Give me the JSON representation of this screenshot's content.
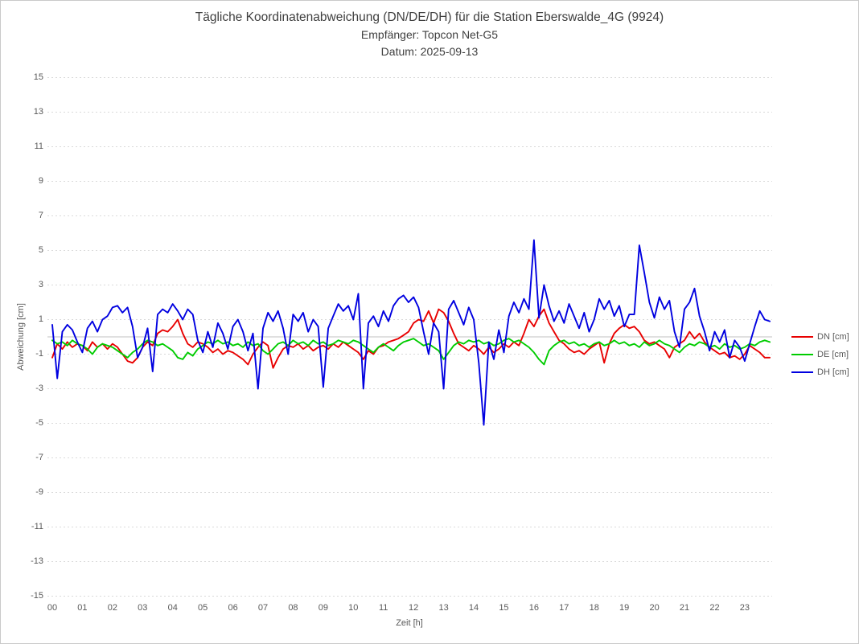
{
  "colors": {
    "dn_red": "#e80000",
    "de_green": "#00cc00",
    "dh_blue": "#0000e0",
    "title_text": "#3f3f3f",
    "tick_text": "#595959",
    "gridline": "#d9d9d9",
    "zero_line": "#c0c0c0"
  },
  "chart_data": {
    "type": "line",
    "title": "Tägliche Koordinatenabweichung (DN/DE/DH) für die Station Eberswalde_4G (9924)",
    "subtitle": "Empfänger: Topcon Net-G5",
    "date_line": "Datum: 2025-09-13",
    "xlabel": "Zeit [h]",
    "ylabel": "Abweichung [cm]",
    "xlim": [
      0,
      24
    ],
    "ylim": [
      -15,
      15
    ],
    "grid": "horizontal-dotted",
    "zero_line": true,
    "legend_position": "right",
    "yticks": [
      15,
      13,
      11,
      9,
      7,
      5,
      3,
      1,
      -1,
      -3,
      -5,
      -7,
      -9,
      -11,
      -13,
      -15
    ],
    "xticks": [
      "00",
      "01",
      "02",
      "03",
      "04",
      "05",
      "06",
      "07",
      "08",
      "09",
      "10",
      "11",
      "12",
      "13",
      "14",
      "15",
      "16",
      "17",
      "18",
      "19",
      "20",
      "21",
      "22",
      "23"
    ],
    "x_start_hour": 0,
    "x_step_minutes": 10,
    "series": [
      {
        "name": "DN [cm]",
        "color": "#e80000",
        "values": [
          -1.2,
          -0.4,
          -0.7,
          -0.3,
          -0.6,
          -0.4,
          -0.5,
          -0.8,
          -0.3,
          -0.6,
          -0.4,
          -0.7,
          -0.4,
          -0.6,
          -1.0,
          -1.4,
          -1.5,
          -1.2,
          -0.6,
          -0.3,
          -0.5,
          0.2,
          0.4,
          0.3,
          0.6,
          1.0,
          0.2,
          -0.4,
          -0.6,
          -0.3,
          -0.4,
          -0.6,
          -0.9,
          -0.7,
          -1.0,
          -0.8,
          -0.9,
          -1.1,
          -1.3,
          -1.6,
          -1.0,
          -0.6,
          -0.3,
          -0.5,
          -1.8,
          -1.2,
          -0.7,
          -0.5,
          -0.6,
          -0.4,
          -0.7,
          -0.5,
          -0.8,
          -0.6,
          -0.5,
          -0.7,
          -0.4,
          -0.6,
          -0.3,
          -0.5,
          -0.7,
          -0.9,
          -1.3,
          -0.8,
          -1.0,
          -0.6,
          -0.5,
          -0.3,
          -0.2,
          -0.1,
          0.1,
          0.3,
          0.8,
          1.0,
          0.9,
          1.5,
          0.8,
          1.6,
          1.4,
          0.9,
          0.2,
          -0.4,
          -0.6,
          -0.8,
          -0.5,
          -0.7,
          -1.0,
          -0.6,
          -0.9,
          -0.7,
          -0.4,
          -0.6,
          -0.3,
          -0.5,
          0.2,
          1.0,
          0.6,
          1.2,
          1.6,
          0.8,
          0.3,
          -0.2,
          -0.4,
          -0.7,
          -0.9,
          -0.8,
          -1.0,
          -0.7,
          -0.5,
          -0.3,
          -1.5,
          -0.4,
          0.2,
          0.5,
          0.7,
          0.5,
          0.6,
          0.3,
          -0.2,
          -0.4,
          -0.3,
          -0.5,
          -0.7,
          -1.2,
          -0.6,
          -0.4,
          -0.2,
          0.3,
          -0.1,
          0.2,
          -0.3,
          -0.6,
          -0.8,
          -1.0,
          -0.9,
          -1.2,
          -1.1,
          -1.3,
          -1.0,
          -0.5,
          -0.7,
          -0.9,
          -1.2,
          -1.2
        ]
      },
      {
        "name": "DE [cm]",
        "color": "#00cc00",
        "values": [
          -0.2,
          -0.4,
          -0.3,
          -0.5,
          -0.2,
          -0.4,
          -0.5,
          -0.7,
          -1.0,
          -0.6,
          -0.4,
          -0.5,
          -0.6,
          -0.8,
          -1.0,
          -1.2,
          -0.9,
          -0.7,
          -0.4,
          -0.2,
          -0.3,
          -0.5,
          -0.4,
          -0.6,
          -0.8,
          -1.2,
          -1.3,
          -0.9,
          -1.1,
          -0.7,
          -0.5,
          -0.3,
          -0.4,
          -0.2,
          -0.4,
          -0.3,
          -0.5,
          -0.4,
          -0.6,
          -0.3,
          -0.5,
          -0.4,
          -0.8,
          -1.0,
          -0.7,
          -0.4,
          -0.3,
          -0.5,
          -0.2,
          -0.4,
          -0.3,
          -0.5,
          -0.2,
          -0.4,
          -0.3,
          -0.5,
          -0.4,
          -0.2,
          -0.3,
          -0.4,
          -0.2,
          -0.3,
          -0.5,
          -0.7,
          -0.9,
          -0.6,
          -0.4,
          -0.6,
          -0.8,
          -0.5,
          -0.3,
          -0.2,
          -0.1,
          -0.3,
          -0.5,
          -0.4,
          -0.6,
          -0.8,
          -1.3,
          -0.9,
          -0.5,
          -0.3,
          -0.4,
          -0.2,
          -0.3,
          -0.2,
          -0.4,
          -0.3,
          -0.5,
          -0.4,
          -0.2,
          -0.1,
          -0.3,
          -0.2,
          -0.4,
          -0.6,
          -0.9,
          -1.3,
          -1.6,
          -0.8,
          -0.5,
          -0.3,
          -0.2,
          -0.4,
          -0.3,
          -0.5,
          -0.4,
          -0.6,
          -0.4,
          -0.3,
          -0.5,
          -0.4,
          -0.2,
          -0.4,
          -0.3,
          -0.5,
          -0.4,
          -0.6,
          -0.3,
          -0.5,
          -0.4,
          -0.2,
          -0.4,
          -0.5,
          -0.7,
          -0.9,
          -0.6,
          -0.4,
          -0.5,
          -0.3,
          -0.4,
          -0.6,
          -0.5,
          -0.7,
          -0.4,
          -0.6,
          -0.5,
          -0.7,
          -0.6,
          -0.4,
          -0.5,
          -0.3,
          -0.2,
          -0.3
        ]
      },
      {
        "name": "DH [cm]",
        "color": "#0000e0",
        "values": [
          0.7,
          -2.4,
          0.3,
          0.7,
          0.4,
          -0.3,
          -0.9,
          0.5,
          0.9,
          0.3,
          1.0,
          1.2,
          1.7,
          1.8,
          1.4,
          1.7,
          0.6,
          -1.2,
          -0.6,
          0.5,
          -2.0,
          1.3,
          1.6,
          1.4,
          1.9,
          1.5,
          1.0,
          1.6,
          1.3,
          -0.2,
          -0.9,
          0.3,
          -0.6,
          0.8,
          0.2,
          -0.7,
          0.6,
          1.0,
          0.3,
          -0.8,
          0.2,
          -3.0,
          0.5,
          1.4,
          0.9,
          1.5,
          0.5,
          -1.0,
          1.3,
          0.9,
          1.4,
          0.3,
          1.0,
          0.6,
          -2.9,
          0.5,
          1.2,
          1.9,
          1.5,
          1.8,
          1.0,
          2.5,
          -3.0,
          0.8,
          1.2,
          0.6,
          1.5,
          0.9,
          1.8,
          2.2,
          2.4,
          2.0,
          2.3,
          1.7,
          0.3,
          -1.0,
          0.8,
          0.3,
          -3.0,
          1.6,
          2.1,
          1.4,
          0.7,
          1.7,
          1.0,
          -1.5,
          -5.1,
          -0.3,
          -1.3,
          0.4,
          -0.9,
          1.2,
          2.0,
          1.4,
          2.2,
          1.6,
          5.6,
          1.1,
          3.0,
          1.8,
          0.9,
          1.5,
          0.8,
          1.9,
          1.2,
          0.5,
          1.4,
          0.3,
          1.0,
          2.2,
          1.6,
          2.1,
          1.2,
          1.8,
          0.6,
          1.3,
          1.3,
          5.3,
          3.7,
          2.0,
          1.1,
          2.3,
          1.6,
          2.1,
          0.3,
          -0.6,
          1.6,
          2.0,
          2.8,
          1.2,
          0.3,
          -0.8,
          0.3,
          -0.3,
          0.4,
          -1.2,
          -0.2,
          -0.6,
          -1.4,
          -0.4,
          0.6,
          1.5,
          1.0,
          0.9
        ]
      }
    ]
  }
}
